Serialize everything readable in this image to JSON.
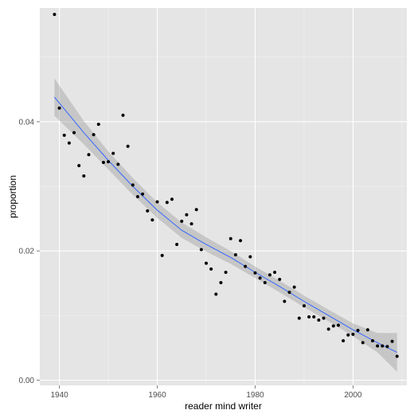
{
  "chart_data": {
    "type": "scatter",
    "title": "",
    "xlabel": "reader mind writer",
    "ylabel": "proportion",
    "xlim": [
      1936,
      2011
    ],
    "ylim": [
      -0.0008,
      0.0576
    ],
    "x_ticks": [
      1940,
      1960,
      1980,
      2000
    ],
    "x_tick_labels": [
      "1940",
      "1960",
      "1980",
      "2000"
    ],
    "y_ticks": [
      0.0,
      0.02,
      0.04
    ],
    "y_tick_labels": [
      "0.00",
      "0.02",
      "0.04"
    ],
    "grid": true,
    "legend": "none",
    "colors": {
      "panel_background": "#e5e5e5",
      "grid_major": "#ffffff",
      "grid_minor": "#f2f2f2",
      "points": "#000000",
      "smooth_line": "#3366ff",
      "confidence_band": "#999999"
    },
    "points": [
      [
        1939,
        0.0566
      ],
      [
        1940,
        0.0421
      ],
      [
        1941,
        0.0379
      ],
      [
        1942,
        0.0367
      ],
      [
        1943,
        0.0383
      ],
      [
        1944,
        0.0332
      ],
      [
        1945,
        0.0316
      ],
      [
        1946,
        0.0349
      ],
      [
        1947,
        0.038
      ],
      [
        1948,
        0.0396
      ],
      [
        1949,
        0.0337
      ],
      [
        1950,
        0.0338
      ],
      [
        1951,
        0.0351
      ],
      [
        1952,
        0.0334
      ],
      [
        1953,
        0.041
      ],
      [
        1954,
        0.0362
      ],
      [
        1955,
        0.0302
      ],
      [
        1956,
        0.0284
      ],
      [
        1957,
        0.0288
      ],
      [
        1958,
        0.0262
      ],
      [
        1959,
        0.0248
      ],
      [
        1960,
        0.0276
      ],
      [
        1961,
        0.0193
      ],
      [
        1962,
        0.0275
      ],
      [
        1963,
        0.028
      ],
      [
        1964,
        0.021
      ],
      [
        1965,
        0.0246
      ],
      [
        1966,
        0.0256
      ],
      [
        1967,
        0.0242
      ],
      [
        1968,
        0.0264
      ],
      [
        1969,
        0.0202
      ],
      [
        1970,
        0.0181
      ],
      [
        1971,
        0.0172
      ],
      [
        1972,
        0.0133
      ],
      [
        1973,
        0.0151
      ],
      [
        1974,
        0.0167
      ],
      [
        1975,
        0.0219
      ],
      [
        1976,
        0.0194
      ],
      [
        1977,
        0.0216
      ],
      [
        1978,
        0.0176
      ],
      [
        1979,
        0.0191
      ],
      [
        1980,
        0.0166
      ],
      [
        1981,
        0.0158
      ],
      [
        1982,
        0.0151
      ],
      [
        1983,
        0.0163
      ],
      [
        1984,
        0.0167
      ],
      [
        1985,
        0.0156
      ],
      [
        1986,
        0.0122
      ],
      [
        1987,
        0.0136
      ],
      [
        1988,
        0.0144
      ],
      [
        1989,
        0.0096
      ],
      [
        1990,
        0.0115
      ],
      [
        1991,
        0.0098
      ],
      [
        1992,
        0.0098
      ],
      [
        1993,
        0.0093
      ],
      [
        1994,
        0.0096
      ],
      [
        1995,
        0.0079
      ],
      [
        1996,
        0.0084
      ],
      [
        1997,
        0.0085
      ],
      [
        1998,
        0.0061
      ],
      [
        1999,
        0.007
      ],
      [
        2000,
        0.0071
      ],
      [
        2001,
        0.0077
      ],
      [
        2002,
        0.0058
      ],
      [
        2003,
        0.0078
      ],
      [
        2004,
        0.0061
      ],
      [
        2005,
        0.0053
      ],
      [
        2006,
        0.0053
      ],
      [
        2007,
        0.0052
      ],
      [
        2008,
        0.006
      ],
      [
        2009,
        0.0037
      ]
    ],
    "smooth": {
      "method": "loess",
      "x": [
        1939,
        1945,
        1950,
        1955,
        1960,
        1965,
        1970,
        1975,
        1980,
        1985,
        1990,
        1995,
        2000,
        2005,
        2009
      ],
      "y": [
        0.0438,
        0.0383,
        0.034,
        0.03,
        0.0263,
        0.0232,
        0.021,
        0.019,
        0.0167,
        0.0145,
        0.0122,
        0.01,
        0.0078,
        0.0058,
        0.0043
      ],
      "lower": [
        0.0409,
        0.0365,
        0.0326,
        0.0287,
        0.0251,
        0.022,
        0.0199,
        0.018,
        0.0158,
        0.0136,
        0.0113,
        0.0091,
        0.0068,
        0.0043,
        0.0013
      ],
      "upper": [
        0.0467,
        0.0401,
        0.0354,
        0.0313,
        0.0275,
        0.0244,
        0.0221,
        0.02,
        0.0176,
        0.0154,
        0.0131,
        0.0109,
        0.0088,
        0.0073,
        0.0073
      ]
    }
  }
}
